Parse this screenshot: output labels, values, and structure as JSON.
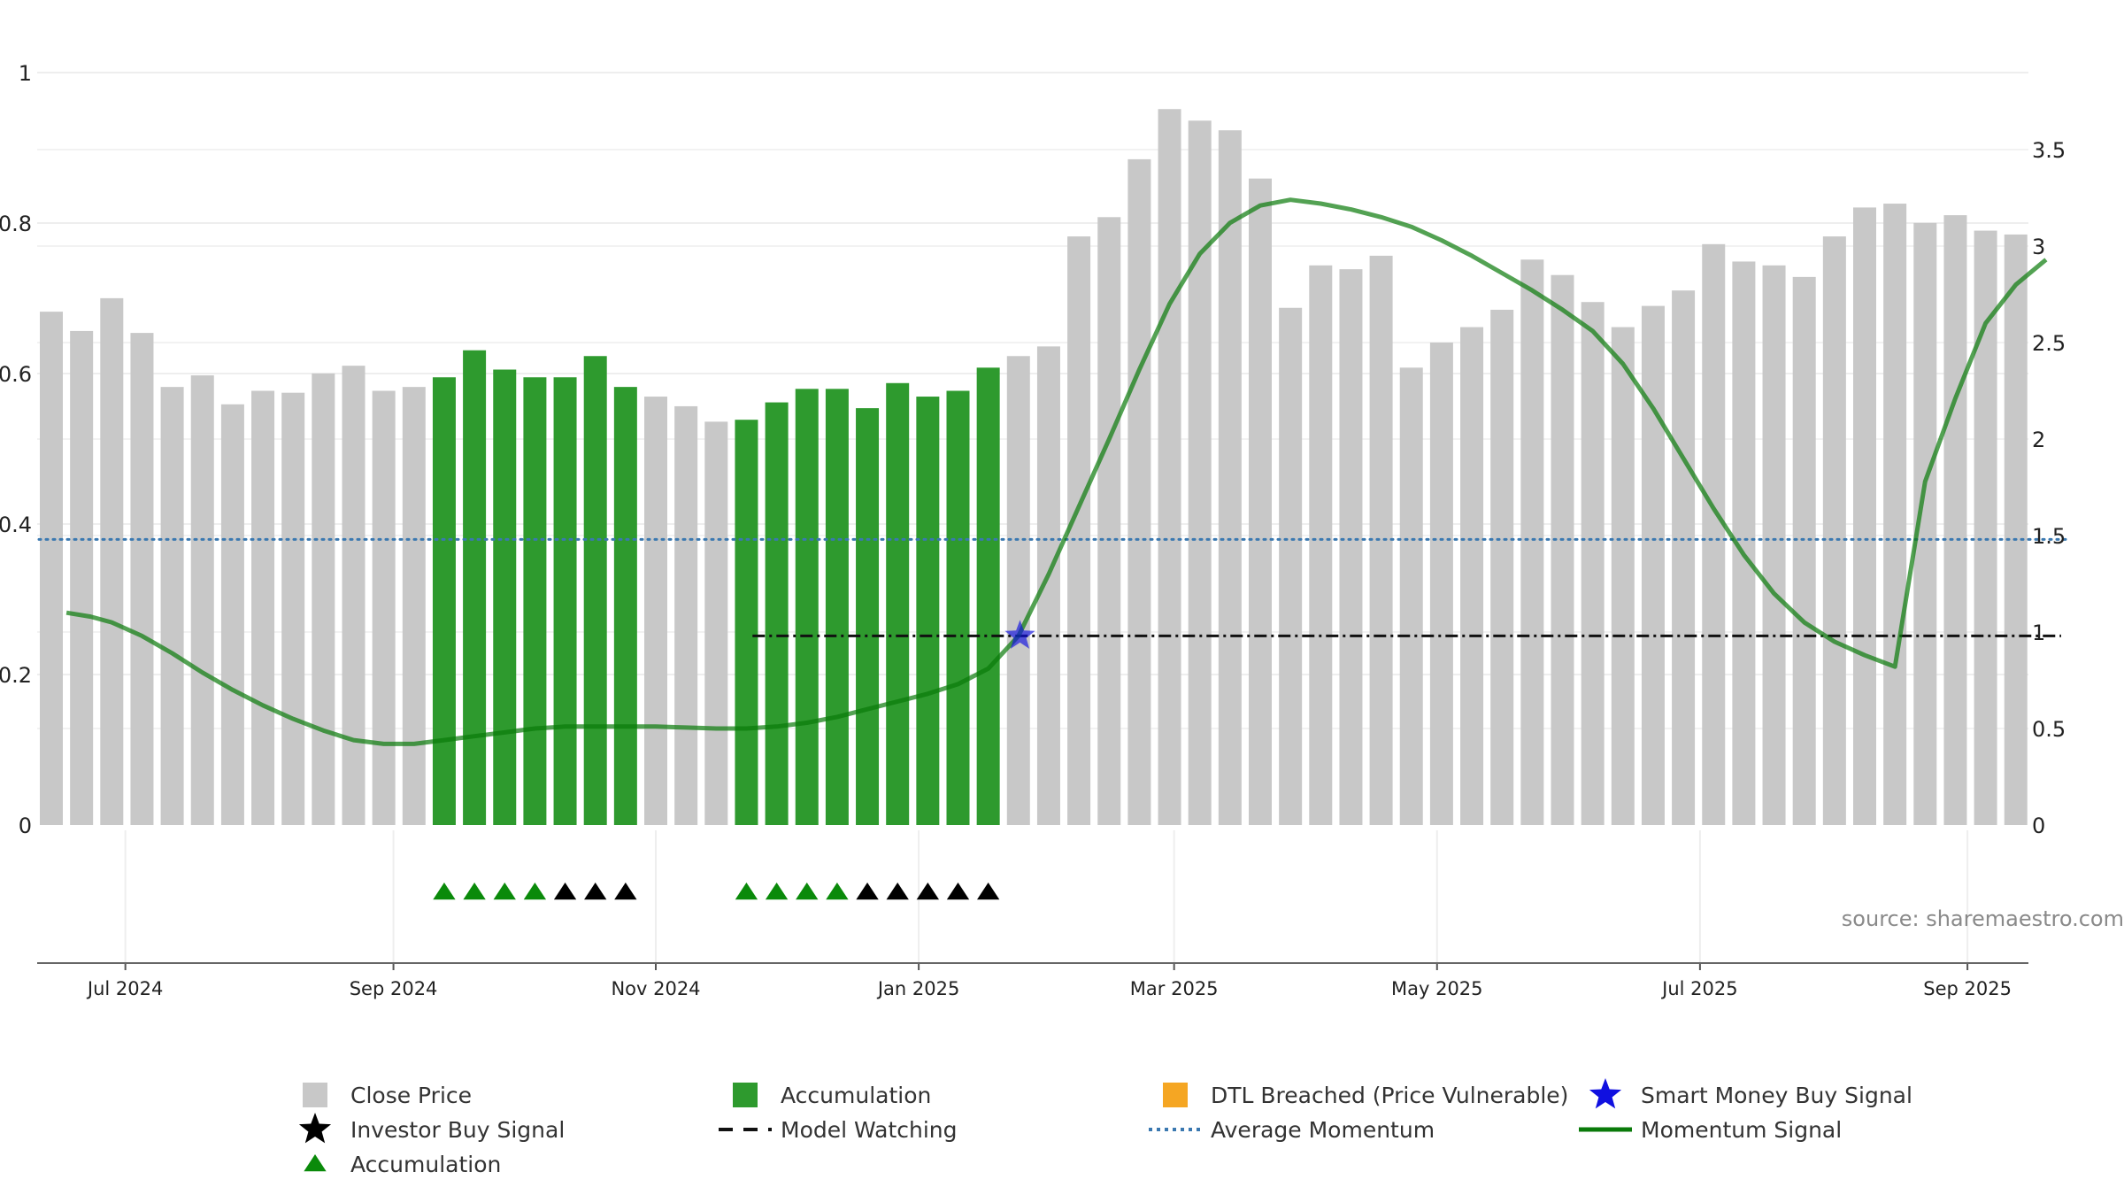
{
  "colors": {
    "close_price": "#c8c8c8",
    "accumulation_bar": "#2e9a2e",
    "dtl_breached": "#f5a623",
    "smart_money": "#1010e0",
    "investor_buy": "#000000",
    "accumulation_marker": "#0a8a0a",
    "model_watching": "#111111",
    "average_momentum": "#3a78b0",
    "momentum": "#0a7a0a"
  },
  "source_note": "source: sharemaestro.com",
  "legend": [
    {
      "key": "close_price",
      "label": "Close Price",
      "symbol": "square-gray"
    },
    {
      "key": "accumulation_bar",
      "label": "Accumulation",
      "symbol": "square-green"
    },
    {
      "key": "dtl_breached",
      "label": "DTL Breached (Price Vulnerable)",
      "symbol": "square-orange"
    },
    {
      "key": "smart_money",
      "label": "Smart Money Buy Signal",
      "symbol": "star-blue"
    },
    {
      "key": "investor_buy",
      "label": "Investor Buy Signal",
      "symbol": "star-black"
    },
    {
      "key": "model_watching",
      "label": "Model Watching",
      "symbol": "dash-black"
    },
    {
      "key": "average_momentum",
      "label": "Average Momentum",
      "symbol": "dotted-blue"
    },
    {
      "key": "momentum",
      "label": "Momentum Signal",
      "symbol": "line-green"
    },
    {
      "key": "accumulation_marker",
      "label": "Accumulation",
      "symbol": "triangle-green"
    }
  ],
  "chart_data": {
    "type": "bar",
    "title": "",
    "xlabel": "",
    "ylabel": "",
    "left_axis": {
      "ylim": [
        0,
        1
      ],
      "ticks": [
        0,
        0.2,
        0.4,
        0.6,
        0.8,
        1
      ],
      "tick_labels": [
        "0",
        "0.2",
        "0.4",
        "0.6",
        "0.8",
        "1"
      ]
    },
    "right_axis": {
      "ylim": [
        0,
        3.9
      ],
      "ticks": [
        0,
        0.5,
        1,
        1.5,
        2,
        2.5,
        3,
        3.5
      ],
      "tick_labels": [
        "0",
        "0.5",
        "1",
        "1.5",
        "2",
        "2.5",
        "3",
        "3.5"
      ]
    },
    "x_axis": {
      "tick_labels": [
        "Jul 2024",
        "Sep 2024",
        "Nov 2024",
        "Jan 2025",
        "Mar 2025",
        "May 2025",
        "Jul 2025",
        "Sep 2025"
      ],
      "tick_positions": [
        2.45,
        11.32,
        20.0,
        28.7,
        37.15,
        45.85,
        54.55,
        63.4
      ]
    },
    "grid": true,
    "legend_position": "bottom",
    "bars": {
      "name": "Close Price",
      "values": [
        2.66,
        2.56,
        2.73,
        2.55,
        2.27,
        2.33,
        2.18,
        2.25,
        2.24,
        2.34,
        2.38,
        2.25,
        2.27,
        2.32,
        2.46,
        2.36,
        2.32,
        2.32,
        2.43,
        2.27,
        2.22,
        2.17,
        2.09,
        2.1,
        2.19,
        2.26,
        2.26,
        2.16,
        2.29,
        2.22,
        2.25,
        2.37,
        2.43,
        2.48,
        3.05,
        3.15,
        3.45,
        3.71,
        3.65,
        3.6,
        3.35,
        2.68,
        2.9,
        2.88,
        2.95,
        2.37,
        2.5,
        2.58,
        2.67,
        2.93,
        2.85,
        2.71,
        2.58,
        2.69,
        2.77,
        3.01,
        2.92,
        2.9,
        2.84,
        3.05,
        3.2,
        3.22,
        3.12,
        3.16,
        3.08,
        3.06
      ],
      "accumulation_indices": [
        13,
        14,
        15,
        16,
        17,
        18,
        19,
        23,
        24,
        25,
        26,
        27,
        28,
        29,
        30,
        31
      ]
    },
    "momentum_signal": {
      "name": "Momentum Signal",
      "axis": "right",
      "x": [
        0.5,
        1.3,
        2.0,
        3.0,
        4.0,
        5.0,
        6.0,
        7.0,
        8.0,
        9.0,
        10.0,
        11.0,
        12.0,
        13.0,
        14.0,
        15.0,
        16.0,
        17.0,
        18.0,
        19.0,
        20.0,
        21.0,
        22.0,
        23.0,
        24.0,
        25.0,
        26.0,
        27.0,
        28.0,
        29.0,
        30.0,
        31.0,
        32.0,
        33.0,
        34.0,
        35.0,
        36.0,
        37.0,
        38.0,
        39.0,
        40.0,
        41.0,
        42.0,
        43.0,
        44.0,
        45.0,
        46.0,
        47.0,
        48.0,
        49.0,
        50.0,
        51.0,
        52.0,
        53.0,
        54.0,
        55.0,
        56.0,
        57.0,
        58.0,
        59.0,
        60.0,
        61.0,
        62.0,
        63.0,
        64.0,
        65.0,
        66.0
      ],
      "y": [
        1.1,
        1.08,
        1.05,
        0.98,
        0.89,
        0.79,
        0.7,
        0.62,
        0.55,
        0.49,
        0.44,
        0.42,
        0.42,
        0.44,
        0.46,
        0.48,
        0.5,
        0.51,
        0.51,
        0.51,
        0.51,
        0.505,
        0.5,
        0.5,
        0.51,
        0.53,
        0.56,
        0.6,
        0.64,
        0.68,
        0.73,
        0.81,
        0.98,
        1.3,
        1.65,
        2.0,
        2.36,
        2.7,
        2.96,
        3.12,
        3.21,
        3.24,
        3.22,
        3.19,
        3.15,
        3.1,
        3.03,
        2.95,
        2.86,
        2.77,
        2.67,
        2.56,
        2.39,
        2.16,
        1.9,
        1.64,
        1.4,
        1.2,
        1.05,
        0.95,
        0.88,
        0.82,
        1.78,
        2.21,
        2.6,
        2.8,
        2.93
      ]
    },
    "average_momentum": {
      "name": "Average Momentum",
      "axis": "right",
      "value": 1.48,
      "x_range": [
        0,
        66.7
      ]
    },
    "model_watching": {
      "name": "Model Watching",
      "axis": "right",
      "value": 0.98,
      "x_range": [
        23.2,
        66.5
      ]
    },
    "smart_money_buy_signal": {
      "name": "Smart Money Buy Signal",
      "axis": "right",
      "x": 32.05,
      "y": 0.98
    },
    "accumulation_markers": {
      "name": "Accumulation",
      "indices": [
        13,
        14,
        15,
        16,
        23,
        24,
        25,
        26
      ]
    },
    "investor_buy_signals": {
      "name": "Investor Buy Signal",
      "indices": [
        17,
        18,
        19,
        27,
        28,
        29,
        30,
        31
      ]
    }
  }
}
